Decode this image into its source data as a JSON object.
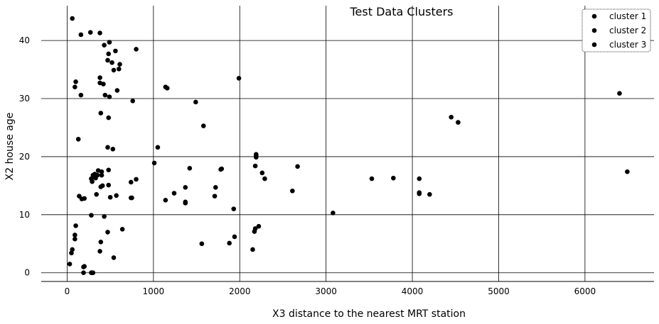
{
  "chart_data": {
    "type": "scatter",
    "title": "Test Data Clusters",
    "xlabel": "X3 distance to the nearest MRT station",
    "ylabel": "X2 house age",
    "xlim": [
      -300,
      6800
    ],
    "ylim": [
      -1.5,
      46
    ],
    "xticks": [
      0,
      1000,
      2000,
      3000,
      4000,
      5000,
      6000
    ],
    "yticks": [
      0,
      10,
      20,
      30,
      40
    ],
    "grid": true,
    "legend_position": "top-right",
    "marker_color": "#000000",
    "series": [
      {
        "name": "cluster 1",
        "points": [
          [
            60,
            43.8
          ],
          [
            160,
            41
          ],
          [
            270,
            41.4
          ],
          [
            380,
            41.3
          ],
          [
            430,
            39.2
          ],
          [
            490,
            39.7
          ],
          [
            560,
            38.2
          ],
          [
            480,
            37.7
          ],
          [
            800,
            38.5
          ],
          [
            520,
            36.2
          ],
          [
            470,
            36.6
          ],
          [
            610,
            35.9
          ],
          [
            600,
            35.1
          ],
          [
            540,
            34.9
          ],
          [
            380,
            33.6
          ],
          [
            380,
            32.7
          ],
          [
            420,
            32.5
          ],
          [
            100,
            32.9
          ],
          [
            90,
            32
          ],
          [
            580,
            31.4
          ],
          [
            160,
            30.6
          ],
          [
            440,
            30.6
          ],
          [
            490,
            30.3
          ],
          [
            760,
            29.6
          ],
          [
            1140,
            32
          ],
          [
            1160,
            31.8
          ],
          [
            1490,
            29.4
          ],
          [
            1990,
            33.5
          ],
          [
            1580,
            25.3
          ],
          [
            390,
            27.5
          ],
          [
            480,
            26.7
          ],
          [
            130,
            23
          ],
          [
            470,
            21.6
          ],
          [
            530,
            21.3
          ],
          [
            1050,
            21.6
          ]
        ]
      },
      {
        "name": "cluster 2",
        "points": [
          [
            30,
            1.5
          ],
          [
            50,
            3.4
          ],
          [
            60,
            4
          ],
          [
            90,
            5.8
          ],
          [
            90,
            6.5
          ],
          [
            100,
            8.1
          ],
          [
            190,
            1
          ],
          [
            200,
            1.1
          ],
          [
            190,
            0
          ],
          [
            280,
            0
          ],
          [
            290,
            0
          ],
          [
            300,
            0
          ],
          [
            280,
            9.9
          ],
          [
            430,
            9.7
          ],
          [
            470,
            7
          ],
          [
            380,
            3.7
          ],
          [
            390,
            5.3
          ],
          [
            540,
            2.6
          ],
          [
            640,
            7.5
          ],
          [
            410,
            15
          ],
          [
            390,
            14.8
          ],
          [
            480,
            15.1
          ],
          [
            500,
            13
          ],
          [
            570,
            13.3
          ],
          [
            740,
            12.9
          ],
          [
            750,
            12.9
          ],
          [
            340,
            13.5
          ],
          [
            330,
            16.3
          ],
          [
            280,
            16.2
          ],
          [
            290,
            15.7
          ],
          [
            300,
            16.8
          ],
          [
            320,
            17
          ],
          [
            350,
            16.8
          ],
          [
            360,
            17.6
          ],
          [
            400,
            16.8
          ],
          [
            400,
            17.4
          ],
          [
            480,
            17.7
          ],
          [
            740,
            15.6
          ],
          [
            800,
            16.1
          ],
          [
            140,
            13.2
          ],
          [
            170,
            12.7
          ],
          [
            200,
            12.8
          ]
        ]
      },
      {
        "name": "cluster 3",
        "points": [
          [
            1010,
            18.9
          ],
          [
            1140,
            12.5
          ],
          [
            1240,
            13.7
          ],
          [
            1370,
            14.7
          ],
          [
            1370,
            12
          ],
          [
            1370,
            12.2
          ],
          [
            1420,
            18
          ],
          [
            1560,
            5
          ],
          [
            1710,
            13.2
          ],
          [
            1720,
            14.7
          ],
          [
            1780,
            17.8
          ],
          [
            1790,
            17.9
          ],
          [
            1880,
            5.1
          ],
          [
            1930,
            11
          ],
          [
            1940,
            6.2
          ],
          [
            2150,
            4
          ],
          [
            2170,
            7.1
          ],
          [
            2180,
            7.6
          ],
          [
            2220,
            8
          ],
          [
            2180,
            18.4
          ],
          [
            2190,
            19.9
          ],
          [
            2190,
            20.2
          ],
          [
            2190,
            20.4
          ],
          [
            2260,
            17.2
          ],
          [
            2290,
            16.2
          ],
          [
            2610,
            14.1
          ],
          [
            2670,
            18.3
          ],
          [
            3080,
            10.3
          ],
          [
            3530,
            16.2
          ],
          [
            3780,
            16.3
          ],
          [
            4080,
            16.2
          ],
          [
            4080,
            13.6
          ],
          [
            4080,
            13.8
          ],
          [
            4200,
            13.5
          ],
          [
            4450,
            26.8
          ],
          [
            4530,
            25.9
          ],
          [
            6400,
            30.9
          ],
          [
            6490,
            17.4
          ]
        ]
      }
    ]
  }
}
